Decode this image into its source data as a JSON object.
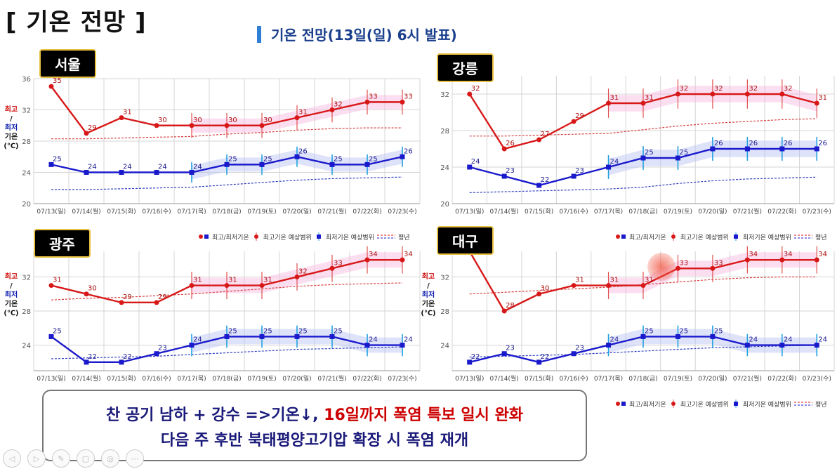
{
  "title": "[ 기온 전망 ]",
  "subtitle": "기온 전망(13일(일) 6시 발표)",
  "ylabel": {
    "hi": "최고",
    "slash": "/",
    "lo": "최저",
    "gion": "기온",
    "unit": "(℃)"
  },
  "legend": {
    "minmax": "최고/최저기온",
    "hi_range": "최고기온 예상범위",
    "lo_range": "최저기온 예상범위",
    "normal": "평년"
  },
  "summary": {
    "line1_a": "찬 공기 남하 + 강수 =>기온↓, ",
    "line1_b": "16일까지 폭염 특보 일시 완화",
    "line2": "다음 주 후반 북태평양고기압 확장 시 폭염 재개"
  },
  "toolbar": [
    "◁",
    "▷",
    "✎",
    "▢",
    "◎",
    "⋯"
  ],
  "chart_data": [
    {
      "type": "line",
      "city": "서울",
      "categories": [
        "07/13(일)",
        "07/14(월)",
        "07/15(화)",
        "07/16(수)",
        "07/17(목)",
        "07/18(금)",
        "07/19(토)",
        "07/20(일)",
        "07/21(월)",
        "07/22(화)",
        "07/23(수)"
      ],
      "ylim": [
        20,
        36
      ],
      "yticks": [
        20,
        24,
        28,
        32,
        36
      ],
      "series": [
        {
          "role": "max",
          "values": [
            35,
            29,
            31,
            30,
            30,
            30,
            30,
            31,
            32,
            33,
            33
          ]
        },
        {
          "role": "min",
          "values": [
            25,
            24,
            24,
            24,
            24,
            25,
            25,
            26,
            25,
            25,
            26
          ]
        },
        {
          "role": "normal_max",
          "values": [
            28.3,
            28.3,
            28.4,
            28.5,
            28.6,
            28.9,
            29.1,
            29.4,
            29.6,
            29.7,
            29.7
          ]
        },
        {
          "role": "normal_min",
          "values": [
            21.8,
            21.8,
            21.9,
            22,
            22.1,
            22.4,
            22.7,
            23,
            23.2,
            23.3,
            23.4
          ]
        }
      ],
      "grid": true
    },
    {
      "type": "line",
      "city": "강릉",
      "categories": [
        "07/13(일)",
        "07/14(월)",
        "07/15(화)",
        "07/16(수)",
        "07/17(목)",
        "07/18(금)",
        "07/19(토)",
        "07/20(일)",
        "07/21(월)",
        "07/22(화)",
        "07/23(수)"
      ],
      "ylim": [
        20,
        34
      ],
      "yticks": [
        20,
        24,
        28,
        32
      ],
      "series": [
        {
          "role": "max",
          "values": [
            32,
            26,
            27,
            29,
            31,
            31,
            32,
            32,
            32,
            32,
            31
          ]
        },
        {
          "role": "min",
          "values": [
            24,
            23,
            22,
            23,
            24,
            25,
            25,
            26,
            26,
            26,
            26
          ]
        },
        {
          "role": "normal_max",
          "values": [
            27.4,
            27.4,
            27.5,
            27.6,
            27.7,
            28.1,
            28.5,
            28.8,
            29,
            29.2,
            29.3
          ]
        },
        {
          "role": "normal_min",
          "values": [
            21.2,
            21.3,
            21.4,
            21.5,
            21.6,
            21.8,
            22.2,
            22.5,
            22.7,
            22.8,
            22.9
          ]
        }
      ],
      "grid": true
    },
    {
      "type": "line",
      "city": "광주",
      "categories": [
        "07/13(일)",
        "07/14(월)",
        "07/15(화)",
        "07/16(수)",
        "07/17(목)",
        "07/18(금)",
        "07/19(토)",
        "07/20(일)",
        "07/21(월)",
        "07/22(화)",
        "07/23(수)"
      ],
      "ylim": [
        21,
        35
      ],
      "yticks": [
        24,
        28,
        32
      ],
      "series": [
        {
          "role": "max",
          "values": [
            31,
            30,
            29,
            29,
            31,
            31,
            31,
            32,
            33,
            34,
            34
          ]
        },
        {
          "role": "min",
          "values": [
            25,
            22,
            22,
            23,
            24,
            25,
            25,
            25,
            25,
            24,
            24
          ]
        },
        {
          "role": "normal_max",
          "values": [
            29.3,
            29.5,
            29.6,
            29.8,
            30,
            30.3,
            30.6,
            30.9,
            31.1,
            31.2,
            31.3
          ]
        },
        {
          "role": "normal_min",
          "values": [
            22.4,
            22.5,
            22.6,
            22.7,
            22.9,
            23.1,
            23.3,
            23.5,
            23.6,
            23.7,
            23.8
          ]
        }
      ],
      "grid": true
    },
    {
      "type": "line",
      "city": "대구",
      "categories": [
        "07/13(일)",
        "07/14(월)",
        "07/15(화)",
        "07/16(수)",
        "07/17(목)",
        "07/18(금)",
        "07/19(토)",
        "07/20(일)",
        "07/21(월)",
        "07/22(화)",
        "07/23(수)"
      ],
      "ylim": [
        21,
        35
      ],
      "yticks": [
        24,
        28,
        32
      ],
      "series": [
        {
          "role": "max",
          "values": [
            35,
            28,
            30,
            31,
            31,
            31,
            33,
            33,
            34,
            34,
            34
          ]
        },
        {
          "role": "min",
          "values": [
            22,
            23,
            22,
            23,
            24,
            25,
            25,
            25,
            24,
            24,
            24
          ]
        },
        {
          "role": "normal_max",
          "values": [
            30,
            30.2,
            30.4,
            30.6,
            30.8,
            31.1,
            31.4,
            31.7,
            31.9,
            32,
            32
          ]
        },
        {
          "role": "normal_min",
          "values": [
            22.6,
            22.7,
            22.8,
            22.9,
            23.1,
            23.3,
            23.5,
            23.7,
            23.8,
            23.9,
            24
          ]
        }
      ],
      "grid": true
    }
  ],
  "colors": {
    "max": "#d81818",
    "min": "#1a1acc",
    "hi_band": "#f6b8e0",
    "lo_band": "#b8c0f4",
    "range_hi": "#e05050",
    "range_lo": "#20a0e0"
  }
}
